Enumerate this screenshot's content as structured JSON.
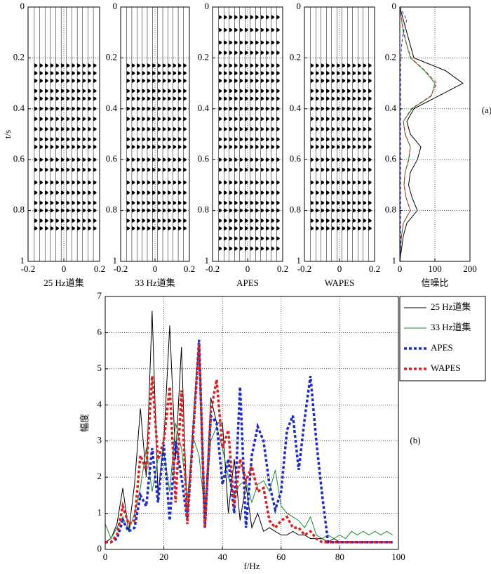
{
  "chart_data": [
    {
      "type": "wiggle",
      "xlabel": "25 Hz道集",
      "xlabel_color": "#000000",
      "ylabel": "t/s",
      "xlim": [
        -0.2,
        0.2
      ],
      "xticks": [
        -0.2,
        0,
        0.2
      ],
      "ylim": [
        1,
        0
      ],
      "yticks": [
        0,
        0.2,
        0.4,
        0.6,
        0.8,
        1
      ],
      "grid": true,
      "traces": [
        -0.165,
        -0.135,
        -0.105,
        -0.075,
        -0.045,
        -0.015,
        0.015,
        0.045,
        0.075,
        0.105,
        0.135,
        0.165
      ],
      "events": [
        0.23,
        0.26,
        0.29,
        0.33,
        0.36,
        0.4,
        0.44,
        0.48,
        0.52,
        0.55,
        0.6,
        0.64,
        0.69,
        0.73,
        0.77,
        0.8,
        0.84,
        0.87
      ]
    },
    {
      "type": "wiggle",
      "xlabel": "33 Hz道集",
      "xlabel_color": "#1a9a3a",
      "xlim": [
        -0.2,
        0.2
      ],
      "xticks": [
        -0.2,
        0,
        0.2
      ],
      "ylim": [
        1,
        0
      ],
      "yticks": [
        0,
        0.2,
        0.4,
        0.6,
        0.8,
        1
      ],
      "grid": true,
      "traces": [
        -0.165,
        -0.135,
        -0.105,
        -0.075,
        -0.045,
        -0.015,
        0.015,
        0.045,
        0.075,
        0.105,
        0.135,
        0.165
      ],
      "events": [
        0.23,
        0.26,
        0.29,
        0.33,
        0.36,
        0.4,
        0.44,
        0.48,
        0.52,
        0.55,
        0.6,
        0.64,
        0.69,
        0.73,
        0.77,
        0.8,
        0.84,
        0.87
      ]
    },
    {
      "type": "wiggle",
      "xlabel": "APES",
      "xlabel_color": "#1c2a8c",
      "xlim": [
        -0.2,
        0.2
      ],
      "xticks": [
        -0.2,
        0,
        0.2
      ],
      "ylim": [
        1,
        0
      ],
      "yticks": [
        0,
        0.2,
        0.4,
        0.6,
        0.8,
        1
      ],
      "grid": true,
      "traces": [
        -0.165,
        -0.135,
        -0.105,
        -0.075,
        -0.045,
        -0.015,
        0.015,
        0.045,
        0.075,
        0.105,
        0.135,
        0.165
      ],
      "events": [
        0.04,
        0.09,
        0.14,
        0.18,
        0.23,
        0.26,
        0.29,
        0.33,
        0.36,
        0.4,
        0.44,
        0.48,
        0.52,
        0.55,
        0.6,
        0.64,
        0.69,
        0.73,
        0.77,
        0.8,
        0.84,
        0.87,
        0.91,
        0.95
      ]
    },
    {
      "type": "wiggle",
      "xlabel": "WAPES",
      "xlabel_color": "#d42020",
      "xlim": [
        -0.2,
        0.2
      ],
      "xticks": [
        -0.2,
        0,
        0.2
      ],
      "ylim": [
        1,
        0
      ],
      "yticks": [
        0,
        0.2,
        0.4,
        0.6,
        0.8,
        1
      ],
      "grid": true,
      "traces": [
        -0.165,
        -0.135,
        -0.105,
        -0.075,
        -0.045,
        -0.015,
        0.015,
        0.045,
        0.075,
        0.105,
        0.135,
        0.165
      ],
      "events": [
        0.23,
        0.26,
        0.29,
        0.33,
        0.36,
        0.4,
        0.44,
        0.48,
        0.52,
        0.55,
        0.6,
        0.64,
        0.69,
        0.73,
        0.77,
        0.8,
        0.84,
        0.87
      ]
    },
    {
      "type": "line_vertical",
      "xlabel": "信噪比",
      "annotation": "(a)",
      "xlim": [
        0,
        200
      ],
      "xticks": [
        0,
        100,
        200
      ],
      "ylim": [
        1,
        0
      ],
      "yticks": [
        0,
        0.2,
        0.4,
        0.6,
        0.8,
        1
      ],
      "grid": true,
      "t": [
        0,
        0.05,
        0.1,
        0.15,
        0.2,
        0.25,
        0.3,
        0.35,
        0.4,
        0.45,
        0.5,
        0.55,
        0.6,
        0.65,
        0.7,
        0.75,
        0.8,
        0.85,
        0.9,
        0.95,
        1
      ],
      "series": [
        {
          "color": "#000000",
          "dash": "",
          "values": [
            0,
            10,
            20,
            30,
            40,
            130,
            180,
            110,
            40,
            20,
            30,
            60,
            50,
            30,
            25,
            35,
            50,
            20,
            10,
            5,
            0
          ]
        },
        {
          "color": "#1a9a3a",
          "dash": "",
          "values": [
            0,
            5,
            10,
            20,
            30,
            70,
            100,
            90,
            35,
            10,
            15,
            30,
            25,
            15,
            12,
            18,
            30,
            10,
            5,
            2,
            0
          ]
        },
        {
          "color": "#d42020",
          "dash": "5 3",
          "values": [
            0,
            5,
            12,
            20,
            32,
            72,
            105,
            88,
            33,
            10,
            16,
            30,
            26,
            15,
            12,
            18,
            30,
            10,
            5,
            2,
            0
          ]
        },
        {
          "color": "#1c2ad0",
          "dash": "4 3",
          "values": [
            0,
            20,
            10,
            5,
            3,
            2,
            2,
            2,
            2,
            2,
            2,
            2,
            2,
            2,
            2,
            2,
            2,
            2,
            2,
            2,
            2
          ]
        }
      ]
    },
    {
      "type": "line",
      "xlabel": "f/Hz",
      "ylabel": "幅度",
      "annotation": "(b)",
      "xlim": [
        0,
        100
      ],
      "xticks": [
        0,
        20,
        40,
        60,
        80,
        100
      ],
      "ylim": [
        0,
        7
      ],
      "yticks": [
        0,
        1,
        2,
        3,
        4,
        5,
        6,
        7
      ],
      "grid": true,
      "legend": "outside-top-right",
      "x": [
        0,
        2,
        4,
        6,
        8,
        10,
        12,
        14,
        16,
        18,
        20,
        22,
        24,
        26,
        28,
        30,
        32,
        34,
        36,
        38,
        40,
        42,
        44,
        46,
        48,
        50,
        52,
        54,
        56,
        58,
        60,
        62,
        64,
        66,
        68,
        70,
        72,
        74,
        76,
        78,
        80,
        82,
        84,
        86,
        88,
        90,
        92,
        94,
        96,
        98
      ],
      "series": [
        {
          "name": "25 Hz道集",
          "color": "#000000",
          "width": 1,
          "dash": "",
          "values": [
            0.2,
            0.3,
            0.7,
            1.7,
            0.5,
            1.8,
            3.9,
            2,
            6.6,
            1.5,
            3,
            6.2,
            2.5,
            5.6,
            0.8,
            3.5,
            5.8,
            0.6,
            4.2,
            3.5,
            3.5,
            1,
            2.5,
            0.8,
            1.8,
            0.6,
            1,
            0.5,
            0.6,
            0.5,
            0.4,
            0.4,
            0.5,
            0.4,
            0.4,
            0.3,
            0.3,
            0.3,
            0.2,
            0.3,
            0.2,
            0.2,
            0.2,
            0.2,
            0.2,
            0.2,
            0.2,
            0.2,
            0.2,
            0.2
          ]
        },
        {
          "name": "33 Hz道集",
          "color": "#1a8a2a",
          "width": 1,
          "dash": "",
          "values": [
            0.7,
            0.3,
            0.6,
            0.9,
            0.5,
            1,
            1.7,
            2.8,
            1.6,
            2.5,
            2.7,
            1.6,
            3.5,
            2.8,
            1.4,
            3.1,
            2.6,
            1,
            3,
            3.4,
            2.8,
            2,
            1.5,
            1.8,
            1.9,
            1.3,
            1.8,
            1.9,
            1.6,
            2.2,
            1.2,
            1,
            0.9,
            0.8,
            0.6,
            0.9,
            0.4,
            0.3,
            0.4,
            0.3,
            0.4,
            0.3,
            0.5,
            0.4,
            0.5,
            0.4,
            0.5,
            0.4,
            0.5,
            0.4
          ]
        },
        {
          "name": "APES",
          "color": "#1c2ad0",
          "width": 3.5,
          "dash": "4 3",
          "values": [
            0.2,
            0.2,
            0.3,
            0.8,
            0.5,
            0.6,
            1.5,
            1.2,
            2.8,
            1.3,
            2.9,
            0.8,
            3,
            2,
            0.8,
            3.2,
            5.8,
            0.6,
            3.7,
            3.5,
            1.8,
            2.5,
            1,
            4.5,
            0.6,
            2.6,
            3.4,
            3,
            1.8,
            1.1,
            1.6,
            3.3,
            3.7,
            2.2,
            3.6,
            4.8,
            3,
            1.5,
            0.2,
            0.2,
            0.2,
            0.2,
            0.2,
            0.2,
            0.2,
            0.2,
            0.2,
            0.2,
            0.2,
            0.2
          ]
        },
        {
          "name": "WAPES",
          "color": "#e02020",
          "width": 3.5,
          "dash": "4 3",
          "values": [
            0.2,
            0.2,
            0.4,
            1.2,
            0.7,
            0.8,
            2.6,
            2.2,
            4.8,
            2.5,
            3,
            4.5,
            1.3,
            4.4,
            0.7,
            3.3,
            5.7,
            0.6,
            3.8,
            4.7,
            2.8,
            3.3,
            1.2,
            2.5,
            1.9,
            2.3,
            1.6,
            1.7,
            0.8,
            0.6,
            0.8,
            0.9,
            0.6,
            0.6,
            0.4,
            0.5,
            0.3,
            0.2,
            0.2,
            0.2,
            0.2,
            0.2,
            0.2,
            0.2,
            0.2,
            0.2,
            0.2,
            0.2,
            0.2,
            0.2
          ]
        }
      ]
    }
  ]
}
